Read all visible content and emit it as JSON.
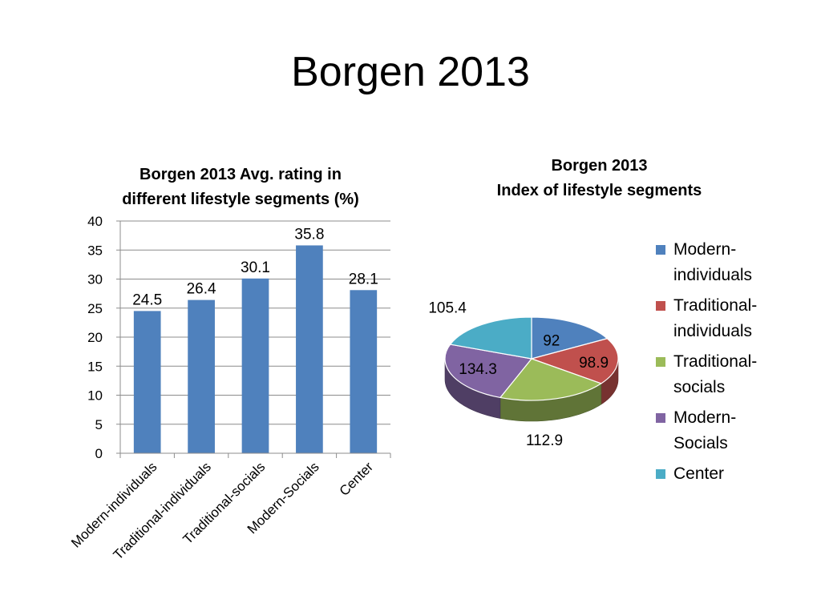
{
  "slide": {
    "title": "Borgen 2013"
  },
  "chart_data": [
    {
      "type": "bar",
      "title_lines": [
        "Borgen 2013 Avg. rating in",
        "different lifestyle segments (%)"
      ],
      "categories": [
        "Modern-individuals",
        "Traditional-individuals",
        "Traditional-socials",
        "Modern-Socials",
        "Center"
      ],
      "values": [
        24.5,
        26.4,
        30.1,
        35.8,
        28.1
      ],
      "value_labels": [
        "24.5",
        "26.4",
        "30.1",
        "35.8",
        "28.1"
      ],
      "ylim": [
        0,
        40
      ],
      "yticks": [
        "0",
        "5",
        "10",
        "15",
        "20",
        "25",
        "30",
        "35",
        "40"
      ],
      "grid": true,
      "color": "#4F81BD"
    },
    {
      "type": "pie",
      "title_lines": [
        "Borgen 2013",
        "Index of lifestyle segments"
      ],
      "labels": [
        "Modern-individuals",
        "Traditional-individuals",
        "Traditional-socials",
        "Modern-Socials",
        "Center"
      ],
      "values": [
        92,
        98.9,
        112.9,
        134.3,
        105.4
      ],
      "value_labels": [
        "92",
        "98.9",
        "112.9",
        "134.3",
        "105.4"
      ],
      "colors": [
        "#4F81BD",
        "#C0504D",
        "#9BBB59",
        "#8064A2",
        "#4BACC6"
      ],
      "legend": [
        {
          "lines": [
            "Modern-",
            "individuals"
          ],
          "color": "#4F81BD"
        },
        {
          "lines": [
            "Traditional-",
            "individuals"
          ],
          "color": "#C0504D"
        },
        {
          "lines": [
            "Traditional-",
            "socials"
          ],
          "color": "#9BBB59"
        },
        {
          "lines": [
            "Modern-",
            "Socials"
          ],
          "color": "#8064A2"
        },
        {
          "lines": [
            "Center"
          ],
          "color": "#4BACC6"
        }
      ],
      "legend_position": "right"
    }
  ]
}
